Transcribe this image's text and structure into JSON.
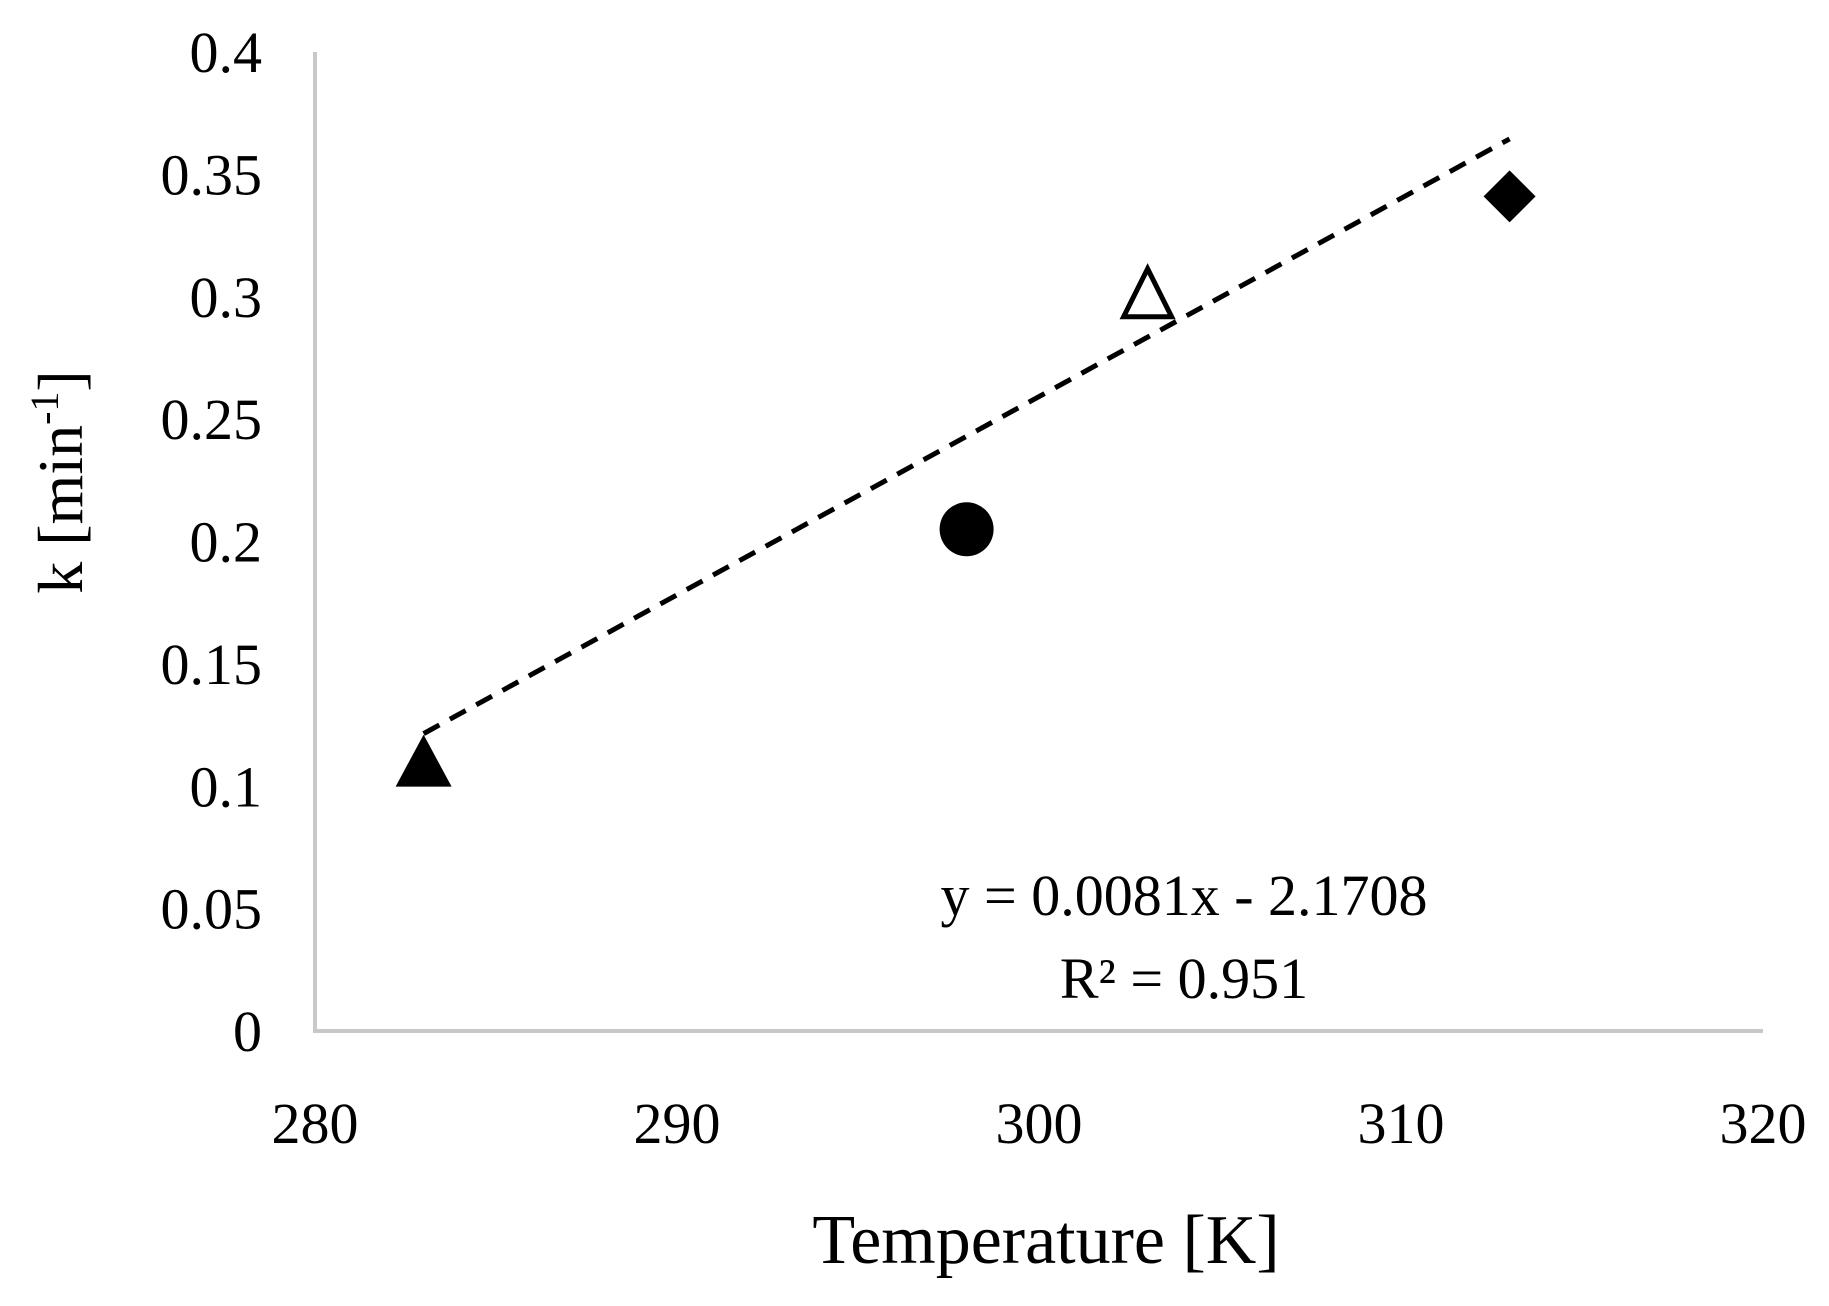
{
  "chart_data": {
    "type": "scatter",
    "title": "",
    "xlabel": "Temperature [K]",
    "ylabel": "k [min-1]",
    "ylabel_main": "k [min",
    "ylabel_sup": "-1",
    "ylabel_close": "]",
    "xlim": [
      280,
      320
    ],
    "ylim": [
      0,
      0.4
    ],
    "x_ticks": [
      "280",
      "290",
      "300",
      "310",
      "320"
    ],
    "y_ticks": [
      "0",
      "0.05",
      "0.1",
      "0.15",
      "0.2",
      "0.25",
      "0.3",
      "0.35",
      "0.4"
    ],
    "grid": false,
    "points": [
      {
        "x": 283,
        "y": 0.108,
        "marker": "triangle-filled"
      },
      {
        "x": 298,
        "y": 0.205,
        "marker": "circle-filled"
      },
      {
        "x": 303,
        "y": 0.3,
        "marker": "triangle-open"
      },
      {
        "x": 313,
        "y": 0.341,
        "marker": "diamond-filled"
      }
    ],
    "trendline": {
      "style": "dashed",
      "slope": 0.0081,
      "intercept": -2.1708,
      "x_range": [
        283,
        313
      ],
      "equation": "y = 0.0081x - 2.1708",
      "r_squared": "R² = 0.951"
    },
    "colors": {
      "axis": "#c8c8c8",
      "marker": "#000000",
      "trendline": "#000000"
    }
  }
}
